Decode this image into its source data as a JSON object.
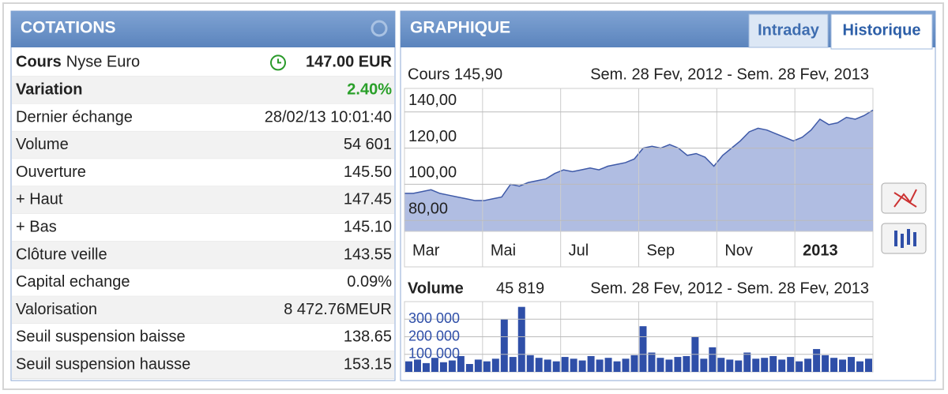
{
  "cotations": {
    "title": "COTATIONS",
    "cours": {
      "label_bold": "Cours",
      "label": "Nyse Euro",
      "value": "147.00 EUR"
    },
    "variation": {
      "label": "Variation",
      "value": "2.40%"
    },
    "rows": [
      [
        "Dernier échange",
        "28/02/13 10:01:40"
      ],
      [
        "Volume",
        "54 601"
      ],
      [
        "Ouverture",
        "145.50"
      ],
      [
        "+ Haut",
        "147.45"
      ],
      [
        "+ Bas",
        "145.10"
      ],
      [
        "Clôture veille",
        "143.55"
      ],
      [
        "Capital echange",
        "0.09%"
      ],
      [
        "Valorisation",
        "8 472.76MEUR"
      ],
      [
        "Seuil suspension baisse",
        "138.65"
      ],
      [
        "Seuil suspension hausse",
        "153.15"
      ]
    ]
  },
  "graphique": {
    "title": "GRAPHIQUE",
    "tabs": [
      "Intraday",
      "Historique"
    ]
  },
  "chart_data": [
    {
      "type": "area",
      "label": "Cours 145,90",
      "period": "Sem. 28 Fev, 2012 - Sem. 28 Fev, 2013",
      "x_labels": [
        "Mar",
        "Mai",
        "Jul",
        "Sep",
        "Nov",
        "2013"
      ],
      "values": [
        95,
        95,
        96,
        97,
        95,
        94,
        93,
        92,
        91,
        91,
        92,
        93,
        100,
        99,
        101,
        102,
        103,
        106,
        108,
        107,
        108,
        109,
        108,
        110,
        111,
        112,
        114,
        120,
        121,
        120,
        122,
        120,
        116,
        117,
        115,
        110,
        116,
        120,
        124,
        129,
        131,
        130,
        128,
        126,
        124,
        126,
        130,
        136,
        133,
        134,
        137,
        136,
        138,
        141
      ],
      "color": "#3f5aa8",
      "ylim": [
        74,
        153
      ],
      "yticks": [
        {
          "value": 80,
          "label": "80,00"
        },
        {
          "value": 100,
          "label": "100,00"
        },
        {
          "value": 120,
          "label": "120,00"
        },
        {
          "value": 140,
          "label": "140,00"
        }
      ],
      "grid": true
    },
    {
      "type": "bar",
      "label": "Volume",
      "value": "45 819",
      "period": "Sem. 28 Fev, 2012 - Sem. 28 Fev, 2013",
      "values": [
        60000,
        70000,
        50000,
        80000,
        55000,
        65000,
        90000,
        45000,
        70000,
        60000,
        75000,
        300000,
        85000,
        370000,
        95000,
        80000,
        70000,
        60000,
        85000,
        75000,
        65000,
        90000,
        70000,
        80000,
        60000,
        75000,
        95000,
        260000,
        110000,
        80000,
        70000,
        85000,
        90000,
        200000,
        75000,
        140000,
        80000,
        70000,
        65000,
        110000,
        75000,
        80000,
        90000,
        70000,
        85000,
        60000,
        75000,
        130000,
        95000,
        80000,
        70000,
        85000,
        60000,
        75000
      ],
      "color": "#2f4fa8",
      "ylim": [
        0,
        400000
      ],
      "yticks": [
        {
          "value": 100000,
          "label": "100 000"
        },
        {
          "value": 200000,
          "label": "200 000"
        },
        {
          "value": 300000,
          "label": "300 000"
        }
      ],
      "grid": true
    }
  ]
}
